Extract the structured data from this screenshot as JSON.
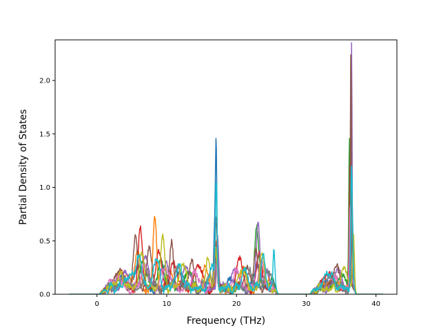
{
  "chart_data": {
    "type": "line",
    "title": "",
    "xlabel": "Frequency (THz)",
    "ylabel": "Partial Density of States",
    "xlim": [
      -6.0,
      43.0
    ],
    "ylim": [
      0.0,
      2.38
    ],
    "xticks": [
      0,
      10,
      20,
      30,
      40
    ],
    "yticks": [
      0.0,
      0.5,
      1.0,
      1.5,
      2.0
    ],
    "xtick_labels": [
      "0",
      "10",
      "20",
      "30",
      "40"
    ],
    "ytick_labels": [
      "0.0",
      "0.5",
      "1.0",
      "1.5",
      "2.0"
    ],
    "grid": false,
    "legend": "none",
    "x_range": [
      -4.0,
      41.0
    ],
    "series": [
      {
        "color": "#1f77b4",
        "peaks": [
          [
            3.2,
            0.12,
            0.6
          ],
          [
            6.0,
            0.2,
            0.5
          ],
          [
            9.5,
            0.18,
            0.5
          ],
          [
            12.0,
            0.15,
            0.6
          ],
          [
            16.9,
            0.6,
            0.15
          ],
          [
            17.1,
            1.14,
            0.1
          ],
          [
            19.0,
            0.12,
            0.5
          ],
          [
            23.0,
            0.25,
            0.4
          ],
          [
            25.3,
            0.1,
            0.3
          ],
          [
            33.5,
            0.1,
            0.6
          ],
          [
            36.3,
            0.6,
            0.15
          ]
        ]
      },
      {
        "color": "#ff7f0e",
        "peaks": [
          [
            4.0,
            0.1,
            0.6
          ],
          [
            5.8,
            0.35,
            0.4
          ],
          [
            8.3,
            0.65,
            0.25
          ],
          [
            10.5,
            0.2,
            0.4
          ],
          [
            15.5,
            0.2,
            0.4
          ],
          [
            17.2,
            0.45,
            0.15
          ],
          [
            21.0,
            0.15,
            0.5
          ],
          [
            24.0,
            0.2,
            0.4
          ],
          [
            34.0,
            0.12,
            0.6
          ],
          [
            36.4,
            0.9,
            0.12
          ]
        ]
      },
      {
        "color": "#2ca02c",
        "peaks": [
          [
            3.0,
            0.1,
            0.6
          ],
          [
            6.5,
            0.25,
            0.5
          ],
          [
            9.2,
            0.3,
            0.4
          ],
          [
            13.0,
            0.18,
            0.5
          ],
          [
            17.0,
            0.35,
            0.2
          ],
          [
            22.9,
            0.6,
            0.3
          ],
          [
            25.0,
            0.12,
            0.3
          ],
          [
            35.0,
            0.15,
            0.5
          ],
          [
            36.2,
            1.38,
            0.1
          ]
        ]
      },
      {
        "color": "#d62728",
        "peaks": [
          [
            3.5,
            0.15,
            0.5
          ],
          [
            6.2,
            0.55,
            0.3
          ],
          [
            8.8,
            0.35,
            0.4
          ],
          [
            11.0,
            0.25,
            0.5
          ],
          [
            14.5,
            0.22,
            0.5
          ],
          [
            17.0,
            0.4,
            0.2
          ],
          [
            20.5,
            0.28,
            0.4
          ],
          [
            23.3,
            0.3,
            0.4
          ],
          [
            33.0,
            0.15,
            0.6
          ],
          [
            36.3,
            1.2,
            0.12
          ]
        ]
      },
      {
        "color": "#9467bd",
        "peaks": [
          [
            4.2,
            0.12,
            0.6
          ],
          [
            7.0,
            0.3,
            0.5
          ],
          [
            10.0,
            0.25,
            0.4
          ],
          [
            12.8,
            0.2,
            0.5
          ],
          [
            17.3,
            0.5,
            0.15
          ],
          [
            19.8,
            0.18,
            0.5
          ],
          [
            23.1,
            0.65,
            0.25
          ],
          [
            24.3,
            0.2,
            0.3
          ],
          [
            34.5,
            0.15,
            0.6
          ],
          [
            36.5,
            2.26,
            0.08
          ]
        ]
      },
      {
        "color": "#8c564b",
        "peaks": [
          [
            3.0,
            0.18,
            0.5
          ],
          [
            5.5,
            0.5,
            0.3
          ],
          [
            7.5,
            0.35,
            0.4
          ],
          [
            10.7,
            0.48,
            0.25
          ],
          [
            13.5,
            0.25,
            0.4
          ],
          [
            17.1,
            0.7,
            0.15
          ],
          [
            21.5,
            0.2,
            0.4
          ],
          [
            22.8,
            0.35,
            0.3
          ],
          [
            34.2,
            0.2,
            0.5
          ],
          [
            36.4,
            2.25,
            0.08
          ]
        ]
      },
      {
        "color": "#e377c2",
        "peaks": [
          [
            2.8,
            0.1,
            0.6
          ],
          [
            6.8,
            0.2,
            0.5
          ],
          [
            9.8,
            0.22,
            0.5
          ],
          [
            14.0,
            0.15,
            0.5
          ],
          [
            17.0,
            0.25,
            0.2
          ],
          [
            20.0,
            0.15,
            0.5
          ],
          [
            23.5,
            0.25,
            0.4
          ],
          [
            33.8,
            0.12,
            0.6
          ],
          [
            36.3,
            0.8,
            0.12
          ]
        ]
      },
      {
        "color": "#7f7f7f",
        "peaks": [
          [
            3.8,
            0.08,
            0.6
          ],
          [
            7.2,
            0.15,
            0.5
          ],
          [
            11.5,
            0.18,
            0.5
          ],
          [
            16.0,
            0.12,
            0.5
          ],
          [
            17.2,
            0.3,
            0.2
          ],
          [
            22.0,
            0.15,
            0.4
          ],
          [
            24.5,
            0.18,
            0.4
          ],
          [
            33.5,
            0.1,
            0.6
          ],
          [
            36.6,
            0.7,
            0.12
          ]
        ]
      },
      {
        "color": "#bcbd22",
        "peaks": [
          [
            3.3,
            0.12,
            0.6
          ],
          [
            6.4,
            0.3,
            0.4
          ],
          [
            9.4,
            0.48,
            0.3
          ],
          [
            12.3,
            0.22,
            0.5
          ],
          [
            15.9,
            0.28,
            0.3
          ],
          [
            17.0,
            0.35,
            0.2
          ],
          [
            20.8,
            0.2,
            0.4
          ],
          [
            23.7,
            0.35,
            0.3
          ],
          [
            35.5,
            0.2,
            0.4
          ],
          [
            36.8,
            0.5,
            0.15
          ]
        ]
      },
      {
        "color": "#17becf",
        "peaks": [
          [
            4.5,
            0.1,
            0.6
          ],
          [
            6.0,
            0.28,
            0.5
          ],
          [
            8.5,
            0.3,
            0.4
          ],
          [
            11.8,
            0.2,
            0.5
          ],
          [
            16.5,
            0.25,
            0.3
          ],
          [
            17.1,
            0.95,
            0.12
          ],
          [
            21.2,
            0.18,
            0.4
          ],
          [
            23.8,
            0.3,
            0.3
          ],
          [
            25.4,
            0.42,
            0.15
          ],
          [
            33.2,
            0.15,
            0.6
          ],
          [
            36.5,
            1.15,
            0.12
          ]
        ]
      }
    ]
  }
}
